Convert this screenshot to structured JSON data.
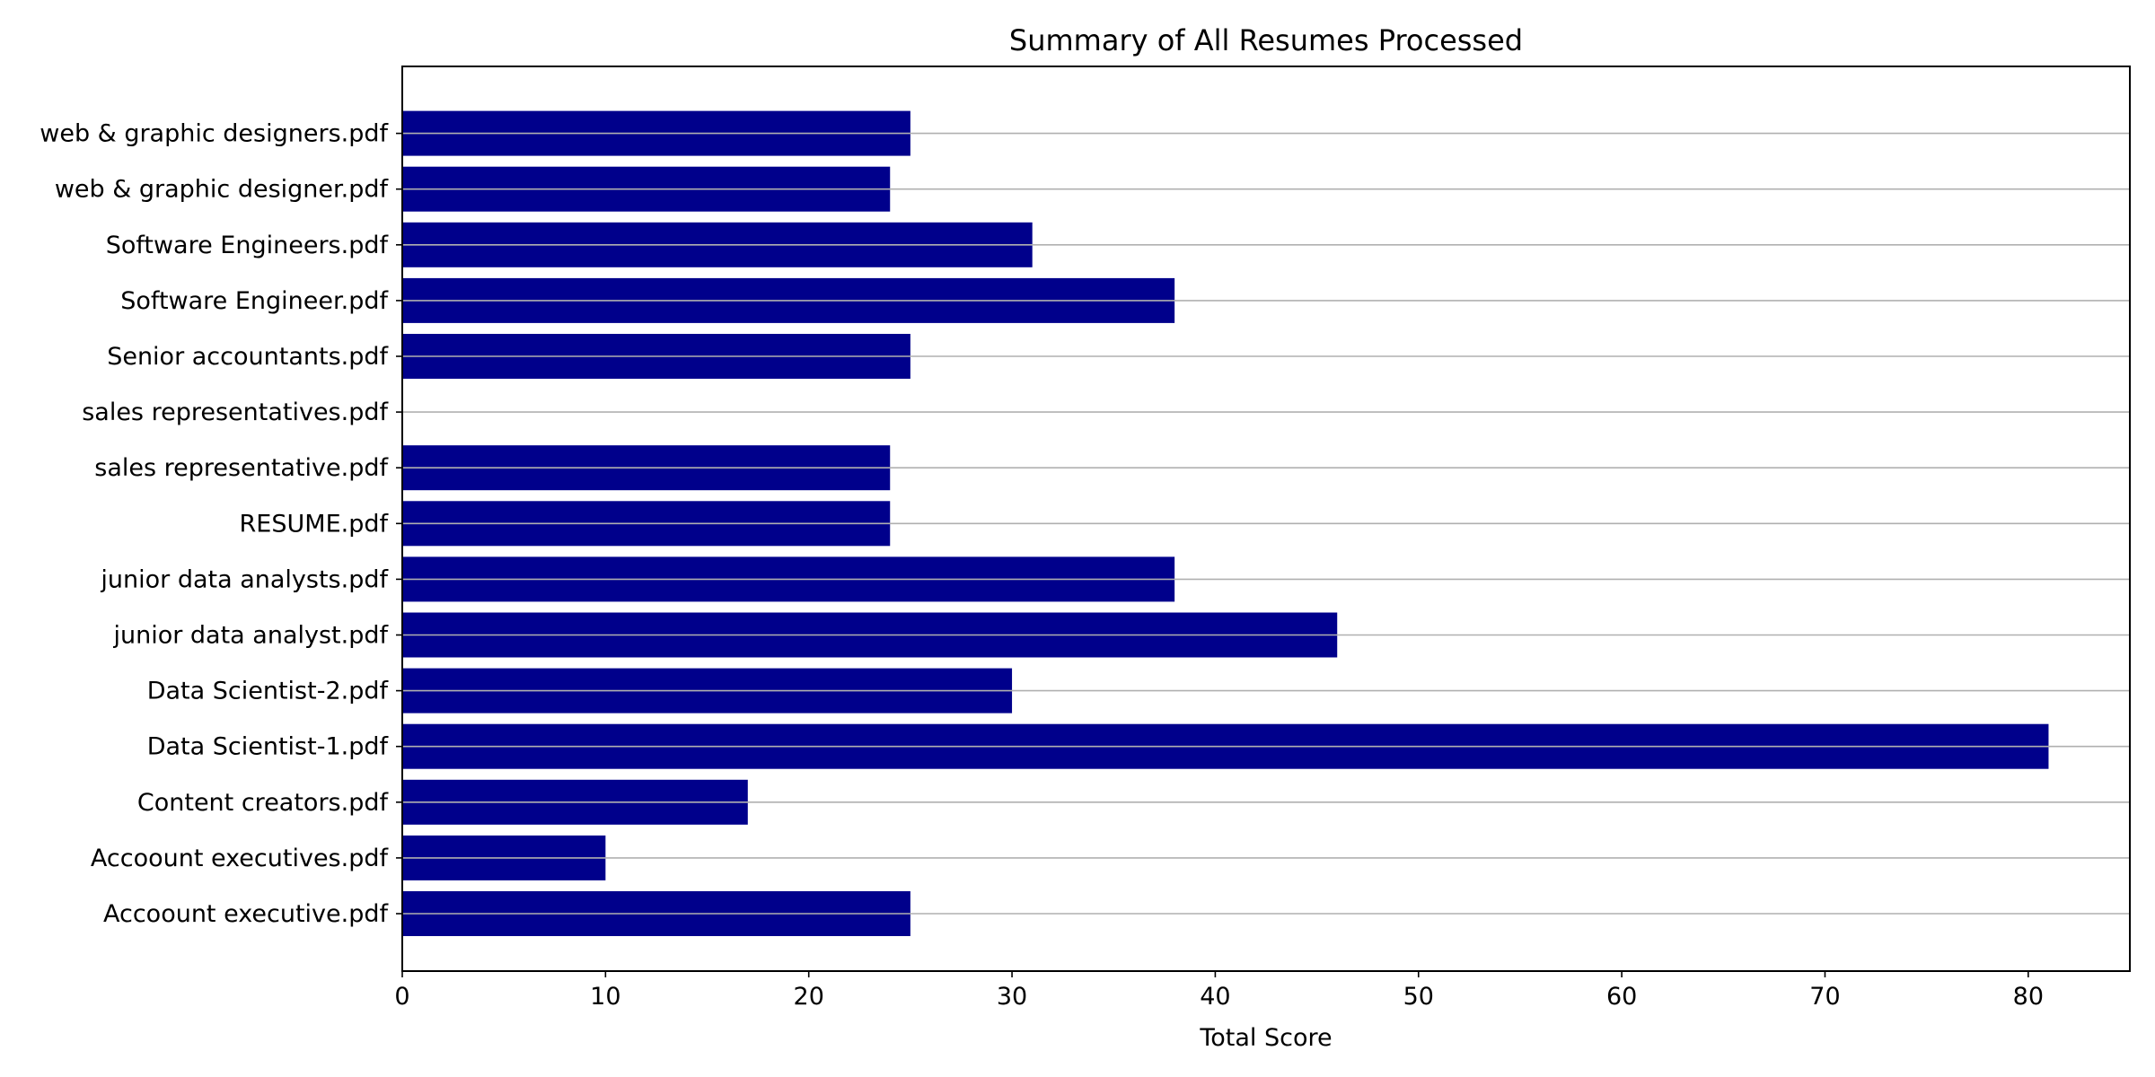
{
  "chart_data": {
    "type": "bar",
    "orientation": "horizontal",
    "title": "Summary of All Resumes Processed",
    "xlabel": "Total Score",
    "ylabel": "",
    "xlim": [
      0,
      85
    ],
    "x_ticks": [
      0,
      10,
      20,
      30,
      40,
      50,
      60,
      70,
      80
    ],
    "grid": "horizontal lines at each category",
    "bar_color": "#00008b",
    "grid_color": "#b0b0b0",
    "categories": [
      "Accoount executive.pdf",
      "Accoount executives.pdf",
      "Content creators.pdf",
      "Data Scientist-1.pdf",
      "Data Scientist-2.pdf",
      "junior data analyst.pdf",
      "junior data analysts.pdf",
      "RESUME.pdf",
      "sales representative.pdf",
      "sales representatives.pdf",
      "Senior accountants.pdf",
      "Software Engineer.pdf",
      "Software Engineers.pdf",
      "web & graphic designer.pdf",
      "web & graphic designers.pdf"
    ],
    "values": [
      25,
      10,
      17,
      81,
      30,
      46,
      38,
      24,
      24,
      0,
      25,
      38,
      31,
      24,
      25
    ]
  }
}
